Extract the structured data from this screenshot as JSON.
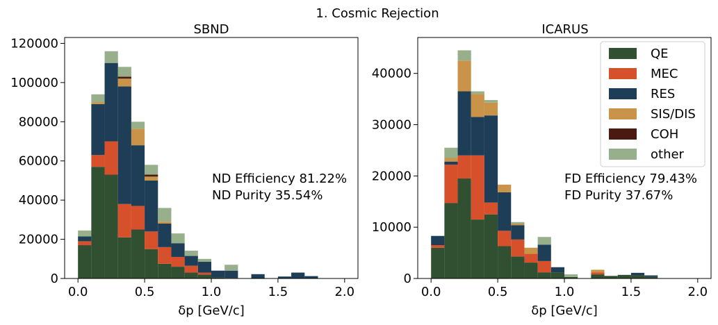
{
  "suptitle": "1. Cosmic Rejection",
  "colors": {
    "QE": "#314f31",
    "MEC": "#d6502c",
    "RES": "#1e3d56",
    "SIS/DIS": "#c99449",
    "COH": "#4a1a10",
    "other": "#97af8a"
  },
  "chart_data": [
    {
      "type": "bar",
      "stacked": true,
      "title": "SBND",
      "xlabel": "δp [GeV/c]",
      "ylabel": "",
      "xlim": [
        -0.1,
        2.1
      ],
      "ylim": [
        0,
        123000
      ],
      "xticks": [
        "0.0",
        "0.5",
        "1.0",
        "1.5",
        "2.0"
      ],
      "yticks": [
        "0",
        "20000",
        "40000",
        "60000",
        "80000",
        "100000",
        "120000"
      ],
      "bin_edges": [
        0.0,
        0.1,
        0.2,
        0.3,
        0.4,
        0.5,
        0.6,
        0.7,
        0.8,
        0.9,
        1.0,
        1.1,
        1.2,
        1.3,
        1.4,
        1.5,
        1.6,
        1.7,
        1.8,
        1.9,
        2.0
      ],
      "series": [
        {
          "name": "QE",
          "values": [
            17000,
            57000,
            53000,
            21000,
            25000,
            15000,
            7500,
            6000,
            3000,
            2000,
            500,
            300,
            0,
            0,
            0,
            0,
            0,
            0,
            0,
            0
          ]
        },
        {
          "name": "MEC",
          "values": [
            2000,
            6000,
            17000,
            17000,
            12000,
            9000,
            8500,
            5000,
            3500,
            1000,
            0,
            0,
            0,
            0,
            0,
            0,
            0,
            0,
            0,
            0
          ]
        },
        {
          "name": "RES",
          "values": [
            2500,
            26000,
            40000,
            60000,
            31000,
            26000,
            12000,
            7000,
            5000,
            5500,
            3500,
            3700,
            0,
            2200,
            0,
            1000,
            3000,
            1200,
            0,
            0
          ]
        },
        {
          "name": "SIS/DIS",
          "values": [
            0,
            1000,
            0,
            4000,
            8500,
            2000,
            1000,
            0,
            0,
            0,
            0,
            0,
            0,
            0,
            0,
            0,
            0,
            0,
            0,
            0
          ]
        },
        {
          "name": "COH",
          "values": [
            0,
            0,
            0,
            1000,
            0,
            1000,
            0,
            0,
            0,
            0,
            0,
            0,
            0,
            0,
            0,
            0,
            0,
            0,
            0,
            0
          ]
        },
        {
          "name": "other",
          "values": [
            3000,
            4000,
            6000,
            5000,
            3500,
            5000,
            7000,
            5000,
            2700,
            1500,
            0,
            3000,
            0,
            0,
            0,
            0,
            0,
            0,
            0,
            0
          ]
        }
      ],
      "annotations": [
        "ND Efficiency 81.22%",
        "ND Purity 35.54%"
      ]
    },
    {
      "type": "bar",
      "stacked": true,
      "title": "ICARUS",
      "xlabel": "δp [GeV/c]",
      "ylabel": "",
      "xlim": [
        -0.1,
        2.1
      ],
      "ylim": [
        0,
        47000
      ],
      "xticks": [
        "0.0",
        "0.5",
        "1.0",
        "1.5",
        "2.0"
      ],
      "yticks": [
        "0",
        "10000",
        "20000",
        "30000",
        "40000"
      ],
      "bin_edges": [
        0.0,
        0.1,
        0.2,
        0.3,
        0.4,
        0.5,
        0.6,
        0.7,
        0.8,
        0.9,
        1.0,
        1.1,
        1.2,
        1.3,
        1.4,
        1.5,
        1.6,
        1.7,
        1.8,
        1.9,
        2.0
      ],
      "series": [
        {
          "name": "QE",
          "values": [
            6000,
            14700,
            19500,
            11500,
            12500,
            6300,
            4300,
            3100,
            1200,
            1200,
            300,
            0,
            800,
            500,
            700,
            600,
            300,
            0,
            0,
            0
          ]
        },
        {
          "name": "MEC",
          "values": [
            500,
            7500,
            4500,
            12500,
            2300,
            3000,
            3300,
            1700,
            2200,
            0,
            0,
            0,
            400,
            0,
            0,
            0,
            0,
            0,
            0,
            0
          ]
        },
        {
          "name": "RES",
          "values": [
            1800,
            600,
            12500,
            7500,
            17000,
            7500,
            2800,
            0,
            3200,
            1000,
            0,
            0,
            0,
            0,
            0,
            500,
            300,
            0,
            0,
            0
          ]
        },
        {
          "name": "SIS/DIS",
          "values": [
            0,
            700,
            6000,
            4500,
            2500,
            1500,
            300,
            1200,
            0,
            0,
            0,
            0,
            500,
            0,
            0,
            0,
            0,
            0,
            0,
            0
          ]
        },
        {
          "name": "COH",
          "values": [
            0,
            0,
            0,
            0,
            0,
            0,
            0,
            0,
            0,
            0,
            0,
            0,
            0,
            0,
            0,
            0,
            0,
            0,
            0,
            0
          ]
        },
        {
          "name": "other",
          "values": [
            0,
            2000,
            2000,
            500,
            500,
            0,
            300,
            0,
            1500,
            0,
            500,
            0,
            0,
            0,
            0,
            0,
            0,
            0,
            0,
            0
          ]
        }
      ],
      "annotations": [
        "FD Efficiency 79.43%",
        "FD Purity 37.67%"
      ],
      "legend": {
        "placement": "top-right",
        "entries": [
          "QE",
          "MEC",
          "RES",
          "SIS/DIS",
          "COH",
          "other"
        ]
      }
    }
  ]
}
